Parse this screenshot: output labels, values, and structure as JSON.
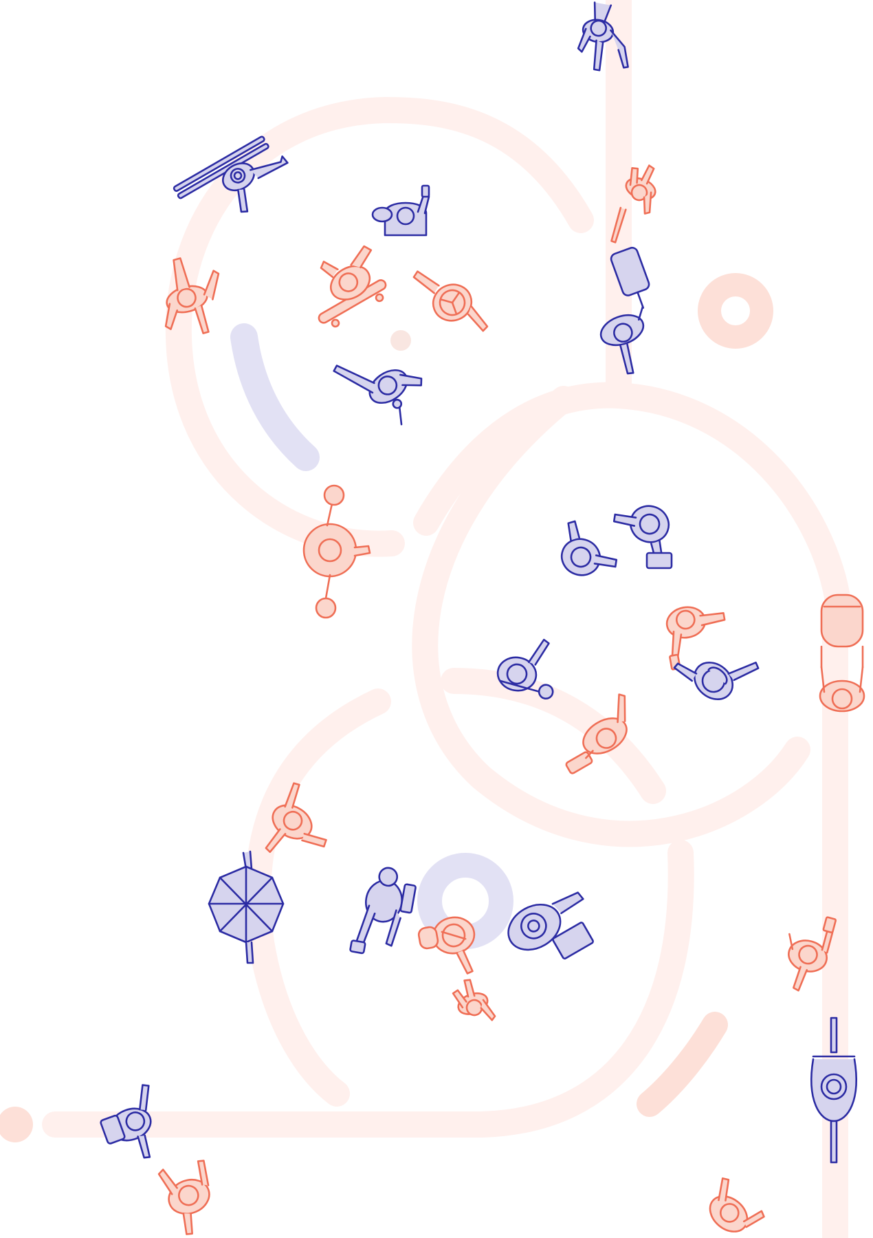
{
  "colors": {
    "background": "#ffffff",
    "path_pale": "#fff0ed",
    "path_pink": "#fde0d8",
    "accent_lavender": "#e2e1f4",
    "figure_navy": "#2b2ba3",
    "figure_navy_fill": "#d6d4ee",
    "figure_coral": "#ef6e55",
    "figure_coral_fill": "#fbd6cc"
  },
  "illustration": {
    "style": "top-down line-art pedestrians on curved paths",
    "figures": [
      {
        "icon": "walker-phone-icon",
        "palette": "navy"
      },
      {
        "icon": "walker-skis-icon",
        "palette": "navy"
      },
      {
        "icon": "walker-icon",
        "palette": "coral"
      },
      {
        "icon": "person-sitting-phone-icon",
        "palette": "navy"
      },
      {
        "icon": "walker-icon",
        "palette": "coral"
      },
      {
        "icon": "suitcase-walker-icon",
        "palette": "navy"
      },
      {
        "icon": "skateboarder-icon",
        "palette": "coral"
      },
      {
        "icon": "hat-walker-icon",
        "palette": "coral"
      },
      {
        "icon": "walker-pointing-icon",
        "palette": "navy"
      },
      {
        "icon": "spinning-person-icon",
        "palette": "coral"
      },
      {
        "icon": "handshake-icon",
        "palette": "navy"
      },
      {
        "icon": "walker-phone-icon",
        "palette": "coral"
      },
      {
        "icon": "headphones-walker-icon",
        "palette": "navy"
      },
      {
        "icon": "walker-yoga-mat-icon",
        "palette": "navy"
      },
      {
        "icon": "stroller-walker-icon",
        "palette": "coral"
      },
      {
        "icon": "person-with-bag-icon",
        "palette": "coral"
      },
      {
        "icon": "walker-icon",
        "palette": "coral"
      },
      {
        "icon": "umbrella-walker-icon",
        "palette": "navy"
      },
      {
        "icon": "person-crouching-icon",
        "palette": "navy"
      },
      {
        "icon": "person-with-bag-icon",
        "palette": "coral"
      },
      {
        "icon": "person-with-box-icon",
        "palette": "navy"
      },
      {
        "icon": "walker-phone-icon",
        "palette": "coral"
      },
      {
        "icon": "cyclist-icon",
        "palette": "navy"
      },
      {
        "icon": "backpack-walker-icon",
        "palette": "navy"
      },
      {
        "icon": "walker-icon",
        "palette": "coral"
      },
      {
        "icon": "walker-icon",
        "palette": "coral"
      }
    ]
  }
}
